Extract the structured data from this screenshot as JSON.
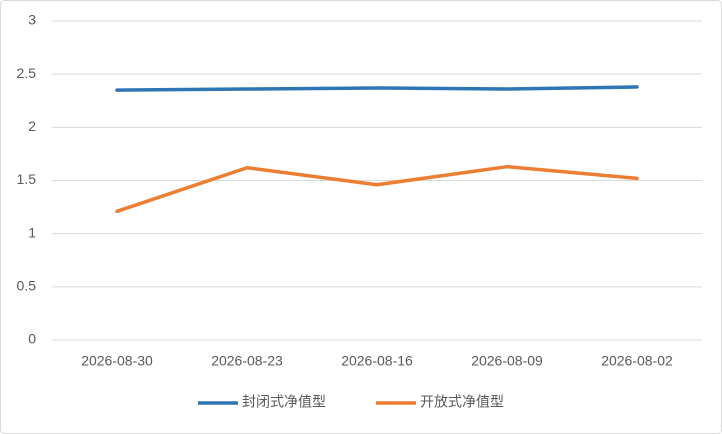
{
  "chart_data": {
    "type": "line",
    "categories": [
      "2026-08-30",
      "2026-08-23",
      "2026-08-16",
      "2026-08-09",
      "2026-08-02"
    ],
    "series": [
      {
        "name": "封闭式净值型",
        "color": "#2e75b6",
        "values": [
          2.35,
          2.36,
          2.37,
          2.36,
          2.38
        ]
      },
      {
        "name": "开放式净值型",
        "color": "#ed7d31",
        "values": [
          1.21,
          1.62,
          1.46,
          1.63,
          1.52
        ]
      }
    ],
    "ylim": [
      0,
      3
    ],
    "yticks": [
      0,
      0.5,
      1,
      1.5,
      2,
      2.5,
      3
    ],
    "grid": true,
    "legend": "bottom"
  }
}
